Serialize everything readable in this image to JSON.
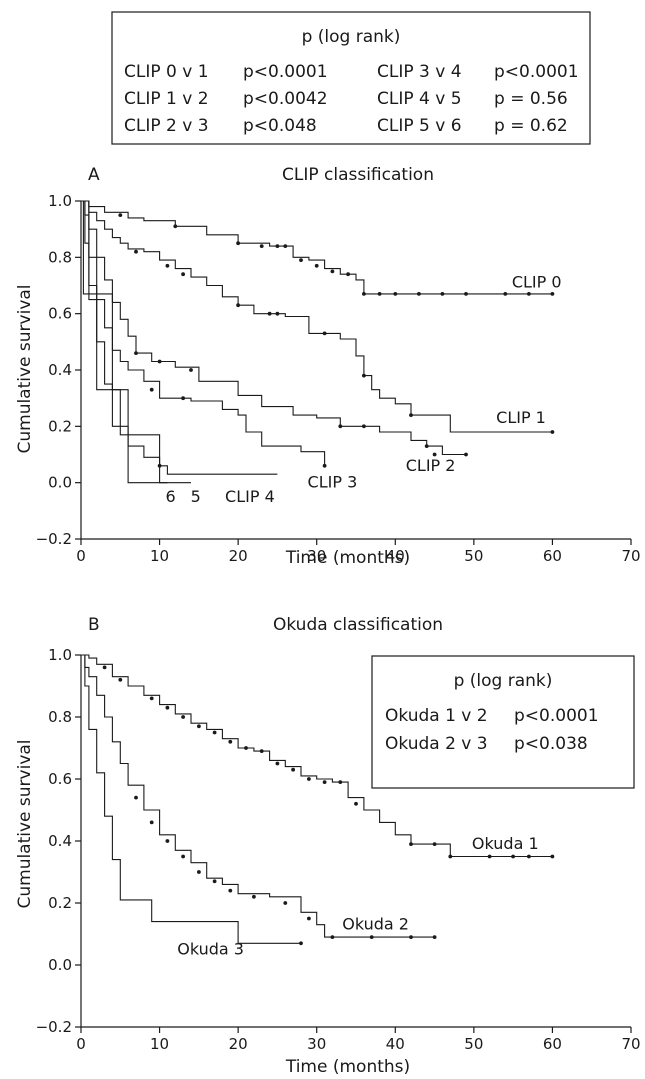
{
  "top_box": {
    "title": "p (log rank)",
    "rows": [
      {
        "left_label": "CLIP 0 v 1",
        "left_p": "p<0.0001",
        "right_label": "CLIP 3 v 4",
        "right_p": "p<0.0001"
      },
      {
        "left_label": "CLIP 1 v 2",
        "left_p": "p<0.0042",
        "right_label": "CLIP 4 v 5",
        "right_p": "p = 0.56"
      },
      {
        "left_label": "CLIP 2 v 3",
        "left_p": "p<0.048",
        "right_label": "CLIP 5 v 6",
        "right_p": "p = 0.62"
      }
    ]
  },
  "okuda_box": {
    "title": "p (log rank)",
    "rows": [
      {
        "label": "Okuda 1 v 2",
        "p": "p<0.0001"
      },
      {
        "label": "Okuda 2 v 3",
        "p": "p<0.038"
      }
    ]
  },
  "chart_data": [
    {
      "type": "line",
      "panel": "A",
      "title": "CLIP classification",
      "xlabel": "Time (months)",
      "ylabel": "Cumulative survival",
      "xlim": [
        0,
        70
      ],
      "ylim": [
        -0.2,
        1.0
      ],
      "xticks": [
        0,
        10,
        20,
        30,
        40,
        50,
        60,
        70
      ],
      "yticks": [
        -0.2,
        0.0,
        0.2,
        0.4,
        0.6,
        0.8,
        1.0
      ],
      "series": [
        {
          "name": "CLIP 0",
          "label_at": [
            58,
            0.71
          ],
          "points": [
            [
              0,
              1.0
            ],
            [
              1,
              0.98
            ],
            [
              3,
              0.96
            ],
            [
              6,
              0.94
            ],
            [
              8,
              0.93
            ],
            [
              12,
              0.91
            ],
            [
              16,
              0.88
            ],
            [
              20,
              0.85
            ],
            [
              24,
              0.84
            ],
            [
              27,
              0.8
            ],
            [
              29,
              0.79
            ],
            [
              31,
              0.76
            ],
            [
              33,
              0.74
            ],
            [
              35,
              0.72
            ],
            [
              36,
              0.67
            ],
            [
              45,
              0.67
            ],
            [
              60,
              0.67
            ]
          ],
          "censored": [
            [
              5,
              0.95
            ],
            [
              12,
              0.91
            ],
            [
              20,
              0.85
            ],
            [
              23,
              0.84
            ],
            [
              25,
              0.84
            ],
            [
              26,
              0.84
            ],
            [
              28,
              0.79
            ],
            [
              30,
              0.77
            ],
            [
              32,
              0.75
            ],
            [
              34,
              0.74
            ],
            [
              36,
              0.67
            ],
            [
              38,
              0.67
            ],
            [
              40,
              0.67
            ],
            [
              43,
              0.67
            ],
            [
              46,
              0.67
            ],
            [
              49,
              0.67
            ],
            [
              54,
              0.67
            ],
            [
              57,
              0.67
            ],
            [
              60,
              0.67
            ]
          ]
        },
        {
          "name": "CLIP 1",
          "label_at": [
            56,
            0.23
          ],
          "points": [
            [
              0,
              1.0
            ],
            [
              1,
              0.96
            ],
            [
              2,
              0.93
            ],
            [
              3,
              0.9
            ],
            [
              4,
              0.87
            ],
            [
              5,
              0.85
            ],
            [
              6,
              0.83
            ],
            [
              8,
              0.82
            ],
            [
              10,
              0.79
            ],
            [
              12,
              0.76
            ],
            [
              14,
              0.73
            ],
            [
              16,
              0.7
            ],
            [
              18,
              0.66
            ],
            [
              20,
              0.63
            ],
            [
              22,
              0.6
            ],
            [
              26,
              0.59
            ],
            [
              29,
              0.53
            ],
            [
              33,
              0.51
            ],
            [
              35,
              0.45
            ],
            [
              36,
              0.38
            ],
            [
              37,
              0.33
            ],
            [
              38,
              0.3
            ],
            [
              40,
              0.28
            ],
            [
              42,
              0.24
            ],
            [
              47,
              0.18
            ],
            [
              60,
              0.18
            ]
          ],
          "censored": [
            [
              7,
              0.82
            ],
            [
              11,
              0.77
            ],
            [
              13,
              0.74
            ],
            [
              20,
              0.63
            ],
            [
              24,
              0.6
            ],
            [
              25,
              0.6
            ],
            [
              31,
              0.53
            ],
            [
              36,
              0.38
            ],
            [
              42,
              0.24
            ],
            [
              60,
              0.18
            ]
          ]
        },
        {
          "name": "CLIP 2",
          "label_at": [
            44.5,
            0.06
          ],
          "points": [
            [
              0,
              1.0
            ],
            [
              0.5,
              0.95
            ],
            [
              1,
              0.9
            ],
            [
              2,
              0.8
            ],
            [
              3,
              0.72
            ],
            [
              4,
              0.64
            ],
            [
              5,
              0.58
            ],
            [
              6,
              0.52
            ],
            [
              7,
              0.46
            ],
            [
              9,
              0.43
            ],
            [
              12,
              0.41
            ],
            [
              15,
              0.36
            ],
            [
              20,
              0.31
            ],
            [
              23,
              0.27
            ],
            [
              27,
              0.24
            ],
            [
              30,
              0.23
            ],
            [
              33,
              0.2
            ],
            [
              38,
              0.18
            ],
            [
              42,
              0.15
            ],
            [
              44,
              0.13
            ],
            [
              46,
              0.1
            ],
            [
              49,
              0.1
            ]
          ],
          "censored": [
            [
              7,
              0.46
            ],
            [
              10,
              0.43
            ],
            [
              14,
              0.4
            ],
            [
              33,
              0.2
            ],
            [
              36,
              0.2
            ],
            [
              44,
              0.13
            ],
            [
              45,
              0.1
            ],
            [
              49,
              0.1
            ]
          ]
        },
        {
          "name": "CLIP 3",
          "label_at": [
            32,
            0.0
          ],
          "points": [
            [
              0,
              1.0
            ],
            [
              1,
              0.8
            ],
            [
              2,
              0.65
            ],
            [
              3,
              0.55
            ],
            [
              4,
              0.47
            ],
            [
              5,
              0.43
            ],
            [
              6,
              0.4
            ],
            [
              8,
              0.36
            ],
            [
              10,
              0.3
            ],
            [
              14,
              0.29
            ],
            [
              18,
              0.26
            ],
            [
              20,
              0.24
            ],
            [
              21,
              0.18
            ],
            [
              23,
              0.13
            ],
            [
              28,
              0.11
            ],
            [
              31,
              0.06
            ]
          ],
          "censored": [
            [
              9,
              0.33
            ],
            [
              13,
              0.3
            ],
            [
              31,
              0.06
            ]
          ]
        },
        {
          "name": "CLIP 4",
          "label_at": [
            21.5,
            -0.05
          ],
          "points": [
            [
              0,
              1.0
            ],
            [
              0.5,
              0.85
            ],
            [
              1,
              0.7
            ],
            [
              2,
              0.5
            ],
            [
              3,
              0.35
            ],
            [
              4,
              0.2
            ],
            [
              6,
              0.13
            ],
            [
              8,
              0.09
            ],
            [
              10,
              0.06
            ],
            [
              11,
              0.03
            ],
            [
              25,
              0.03
            ]
          ],
          "censored": [
            [
              10,
              0.06
            ]
          ]
        },
        {
          "name": "5",
          "label_at": [
            14.6,
            -0.05
          ],
          "points": [
            [
              0,
              1.0
            ],
            [
              1,
              0.65
            ],
            [
              2,
              0.33
            ],
            [
              4,
              0.33
            ],
            [
              5,
              0.17
            ],
            [
              9,
              0.17
            ],
            [
              10,
              0.0
            ],
            [
              14,
              0.0
            ]
          ],
          "censored": []
        },
        {
          "name": "6",
          "label_at": [
            11.4,
            -0.05
          ],
          "points": [
            [
              0,
              1.0
            ],
            [
              0.3,
              0.67
            ],
            [
              3,
              0.67
            ],
            [
              4,
              0.33
            ],
            [
              6,
              0.0
            ],
            [
              11,
              0.0
            ]
          ],
          "censored": []
        }
      ]
    },
    {
      "type": "line",
      "panel": "B",
      "title": "Okuda classification",
      "xlabel": "Time (months)",
      "ylabel": "Cumulative survival",
      "xlim": [
        0,
        70
      ],
      "ylim": [
        -0.2,
        1.0
      ],
      "xticks": [
        0,
        10,
        20,
        30,
        40,
        50,
        60,
        70
      ],
      "yticks": [
        -0.2,
        0.0,
        0.2,
        0.4,
        0.6,
        0.8,
        1.0
      ],
      "series": [
        {
          "name": "Okuda 1",
          "label_at": [
            54,
            0.39
          ],
          "points": [
            [
              0,
              1.0
            ],
            [
              1,
              0.99
            ],
            [
              2,
              0.97
            ],
            [
              4,
              0.93
            ],
            [
              6,
              0.9
            ],
            [
              8,
              0.87
            ],
            [
              10,
              0.84
            ],
            [
              12,
              0.81
            ],
            [
              14,
              0.78
            ],
            [
              16,
              0.76
            ],
            [
              18,
              0.73
            ],
            [
              20,
              0.7
            ],
            [
              22,
              0.69
            ],
            [
              24,
              0.66
            ],
            [
              26,
              0.64
            ],
            [
              28,
              0.61
            ],
            [
              30,
              0.6
            ],
            [
              32,
              0.59
            ],
            [
              34,
              0.54
            ],
            [
              36,
              0.5
            ],
            [
              38,
              0.46
            ],
            [
              40,
              0.42
            ],
            [
              42,
              0.39
            ],
            [
              47,
              0.35
            ],
            [
              60,
              0.35
            ]
          ],
          "censored": [
            [
              3,
              0.96
            ],
            [
              5,
              0.92
            ],
            [
              9,
              0.86
            ],
            [
              11,
              0.83
            ],
            [
              13,
              0.8
            ],
            [
              15,
              0.77
            ],
            [
              17,
              0.75
            ],
            [
              19,
              0.72
            ],
            [
              21,
              0.7
            ],
            [
              23,
              0.69
            ],
            [
              25,
              0.65
            ],
            [
              27,
              0.63
            ],
            [
              29,
              0.6
            ],
            [
              31,
              0.59
            ],
            [
              33,
              0.59
            ],
            [
              35,
              0.52
            ],
            [
              42,
              0.39
            ],
            [
              45,
              0.39
            ],
            [
              47,
              0.35
            ],
            [
              52,
              0.35
            ],
            [
              55,
              0.35
            ],
            [
              57,
              0.35
            ],
            [
              60,
              0.35
            ]
          ]
        },
        {
          "name": "Okuda 2",
          "label_at": [
            37.5,
            0.13
          ],
          "points": [
            [
              0,
              1.0
            ],
            [
              0.5,
              0.96
            ],
            [
              1,
              0.93
            ],
            [
              2,
              0.87
            ],
            [
              3,
              0.8
            ],
            [
              4,
              0.72
            ],
            [
              5,
              0.65
            ],
            [
              6,
              0.58
            ],
            [
              8,
              0.5
            ],
            [
              10,
              0.42
            ],
            [
              12,
              0.37
            ],
            [
              14,
              0.33
            ],
            [
              16,
              0.28
            ],
            [
              18,
              0.26
            ],
            [
              20,
              0.23
            ],
            [
              24,
              0.22
            ],
            [
              28,
              0.17
            ],
            [
              30,
              0.13
            ],
            [
              31,
              0.09
            ],
            [
              45,
              0.09
            ]
          ],
          "censored": [
            [
              7,
              0.54
            ],
            [
              9,
              0.46
            ],
            [
              11,
              0.4
            ],
            [
              13,
              0.35
            ],
            [
              15,
              0.3
            ],
            [
              17,
              0.27
            ],
            [
              19,
              0.24
            ],
            [
              22,
              0.22
            ],
            [
              26,
              0.2
            ],
            [
              29,
              0.15
            ],
            [
              32,
              0.09
            ],
            [
              37,
              0.09
            ],
            [
              42,
              0.09
            ],
            [
              45,
              0.09
            ]
          ]
        },
        {
          "name": "Okuda 3",
          "label_at": [
            16.5,
            0.05
          ],
          "points": [
            [
              0,
              1.0
            ],
            [
              0.5,
              0.9
            ],
            [
              1,
              0.76
            ],
            [
              2,
              0.62
            ],
            [
              3,
              0.48
            ],
            [
              4,
              0.34
            ],
            [
              5,
              0.21
            ],
            [
              9,
              0.14
            ],
            [
              20,
              0.07
            ],
            [
              28,
              0.07
            ]
          ],
          "censored": [
            [
              28,
              0.07
            ]
          ]
        }
      ]
    }
  ]
}
